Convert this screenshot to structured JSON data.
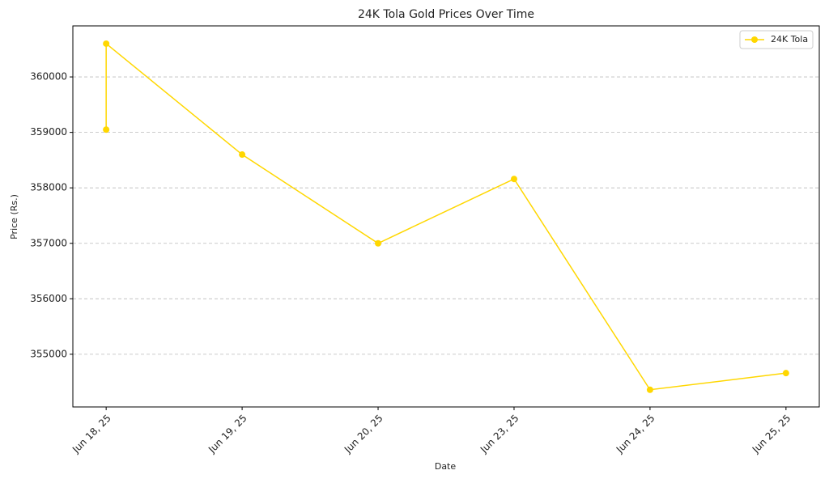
{
  "chart_data": {
    "type": "line",
    "title": "24K Tola Gold Prices Over Time",
    "xlabel": "Date",
    "ylabel": "Price (Rs.)",
    "categories": [
      "Jun 18, 25",
      "Jun 19, 25",
      "Jun 20, 25",
      "Jun 23, 25",
      "Jun 24, 25",
      "Jun 25, 25"
    ],
    "series": [
      {
        "name": "24K Tola",
        "color": "#FFD700",
        "x": [
          "Jun 18, 25",
          "Jun 18, 25",
          "Jun 19, 25",
          "Jun 20, 25",
          "Jun 23, 25",
          "Jun 24, 25",
          "Jun 25, 25"
        ],
        "values": [
          359050,
          360600,
          358600,
          357000,
          358160,
          354360,
          354660
        ]
      }
    ],
    "ylim": [
      354050,
      360920
    ],
    "yticks": [
      355000,
      356000,
      357000,
      358000,
      359000,
      360000
    ],
    "grid": true,
    "legend": "upper right"
  }
}
